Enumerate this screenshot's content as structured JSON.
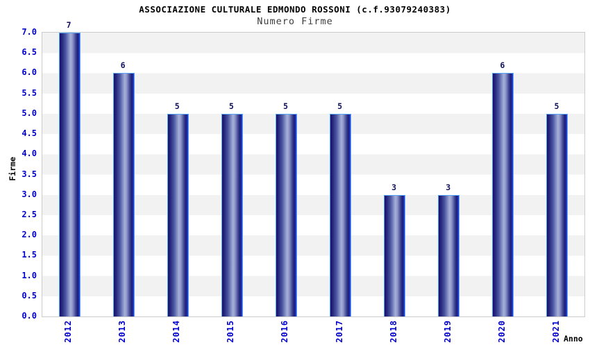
{
  "chart_data": {
    "type": "bar",
    "title": "ASSOCIAZIONE CULTURALE EDMONDO ROSSONI (c.f.93079240383)",
    "subtitle": "Numero Firme",
    "xlabel": "Anno",
    "ylabel": "Firme",
    "categories": [
      "2012",
      "2013",
      "2014",
      "2015",
      "2016",
      "2017",
      "2018",
      "2019",
      "2020",
      "2021"
    ],
    "values": [
      7,
      6,
      5,
      5,
      5,
      5,
      3,
      3,
      6,
      5
    ],
    "bar_value_labels": [
      "7",
      "6",
      "5",
      "5",
      "5",
      "5",
      "3",
      "3",
      "6",
      "5"
    ],
    "ylim": [
      0,
      7
    ],
    "ytick_step": 0.5,
    "ytick_labels": [
      "0.0",
      "0.5",
      "1.0",
      "1.5",
      "2.0",
      "2.5",
      "3.0",
      "3.5",
      "4.0",
      "4.5",
      "5.0",
      "5.5",
      "6.0",
      "6.5",
      "7.0"
    ],
    "grid": "alternating horizontal bands",
    "legend": "none",
    "colors": {
      "tick_label_blue": "#0000cd",
      "bar_value_navy": "#10105e",
      "bar_dark_navy": "#15156b",
      "bar_highlight": "#a6b0da",
      "bar_right_stripe": "#2c46e2",
      "bar_outline_light_blue": "#58a6f5",
      "band_gray": "#f2f2f2",
      "band_white": "#ffffff",
      "plot_border": "#cbcbcb",
      "subtitle_gray": "#3d3d3d",
      "title_black": "#000000"
    }
  }
}
